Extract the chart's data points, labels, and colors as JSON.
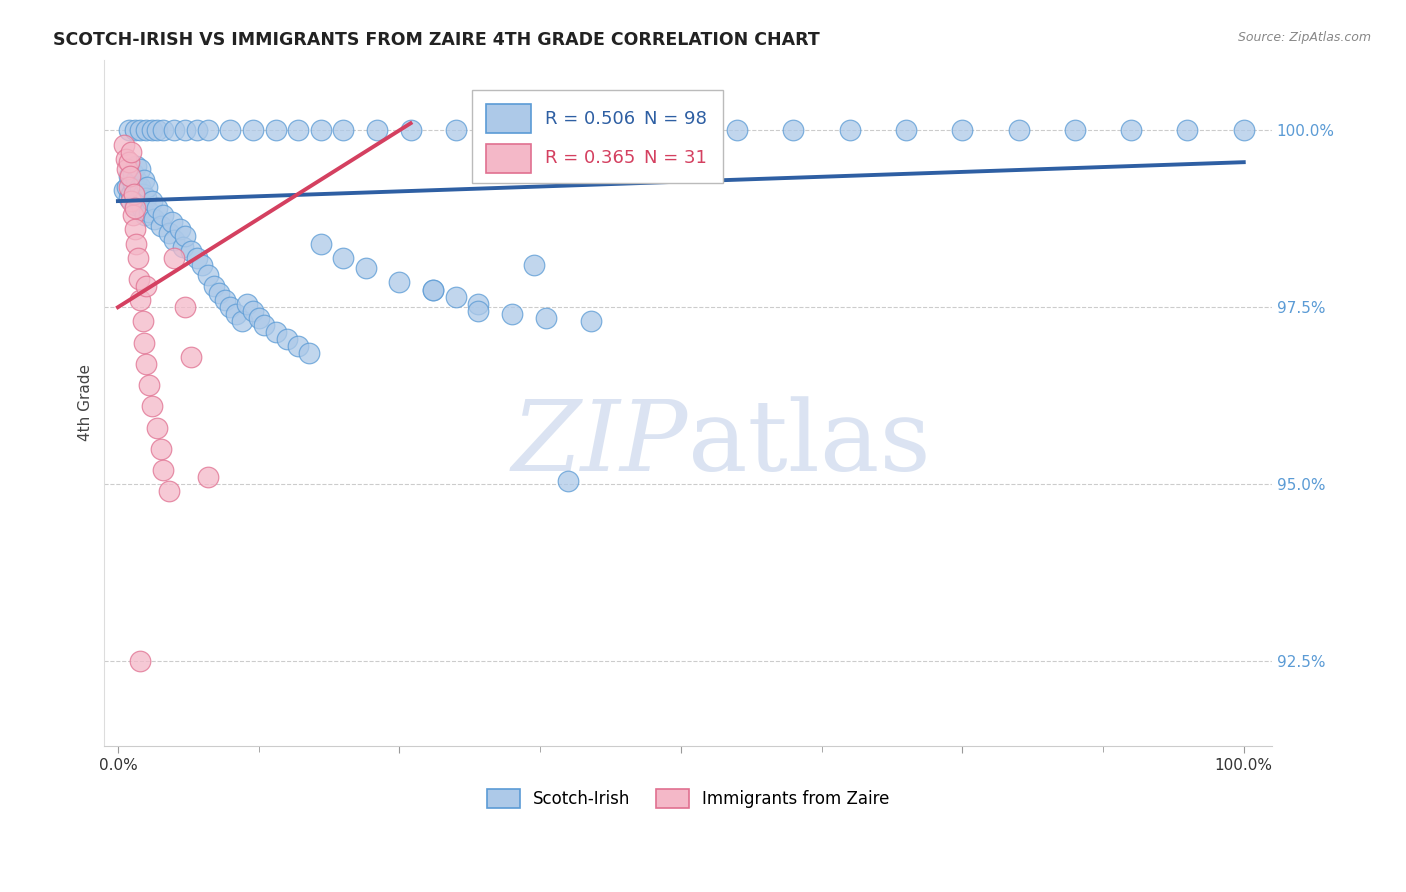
{
  "title": "SCOTCH-IRISH VS IMMIGRANTS FROM ZAIRE 4TH GRADE CORRELATION CHART",
  "source": "Source: ZipAtlas.com",
  "ylabel": "4th Grade",
  "R_blue": 0.506,
  "N_blue": 98,
  "R_pink": 0.365,
  "N_pink": 31,
  "blue_color": "#adc9e8",
  "blue_edge_color": "#5b9bd5",
  "blue_line_color": "#2e5fa3",
  "pink_color": "#f4b8c8",
  "pink_edge_color": "#e07090",
  "pink_line_color": "#d44060",
  "legend_blue_label": "Scotch-Irish",
  "legend_pink_label": "Immigrants from Zaire",
  "ytick_color": "#5b9bd5",
  "xtick_color": "#333333",
  "watermark_color": "#d5dff0",
  "blue_trend": [
    0.0,
    99.0,
    1.0,
    99.55
  ],
  "pink_trend": [
    0.0,
    97.5,
    0.26,
    100.1
  ],
  "blue_x": [
    0.005,
    0.008,
    0.01,
    0.01,
    0.012,
    0.013,
    0.013,
    0.015,
    0.016,
    0.016,
    0.018,
    0.019,
    0.02,
    0.02,
    0.021,
    0.022,
    0.023,
    0.024,
    0.025,
    0.026,
    0.028,
    0.03,
    0.032,
    0.035,
    0.038,
    0.04,
    0.045,
    0.048,
    0.05,
    0.055,
    0.058,
    0.06,
    0.065,
    0.07,
    0.075,
    0.08,
    0.085,
    0.09,
    0.095,
    0.1,
    0.105,
    0.11,
    0.115,
    0.12,
    0.125,
    0.13,
    0.14,
    0.15,
    0.16,
    0.17,
    0.18,
    0.2,
    0.22,
    0.25,
    0.28,
    0.3,
    0.32,
    0.35,
    0.38,
    0.4,
    0.01,
    0.015,
    0.02,
    0.025,
    0.03,
    0.035,
    0.04,
    0.05,
    0.06,
    0.07,
    0.08,
    0.1,
    0.12,
    0.14,
    0.16,
    0.18,
    0.2,
    0.23,
    0.26,
    0.3,
    0.35,
    0.4,
    0.45,
    0.5,
    0.55,
    0.6,
    0.65,
    0.7,
    0.75,
    0.8,
    0.85,
    0.9,
    0.95,
    1.0,
    0.28,
    0.32,
    0.37,
    0.42
  ],
  "blue_y": [
    99.15,
    99.2,
    99.05,
    99.35,
    99.1,
    99.25,
    99.4,
    98.95,
    99.3,
    99.5,
    99.15,
    99.0,
    99.2,
    99.45,
    98.9,
    99.1,
    99.3,
    98.8,
    99.05,
    99.2,
    98.85,
    99.0,
    98.75,
    98.9,
    98.65,
    98.8,
    98.55,
    98.7,
    98.45,
    98.6,
    98.35,
    98.5,
    98.3,
    98.2,
    98.1,
    97.95,
    97.8,
    97.7,
    97.6,
    97.5,
    97.4,
    97.3,
    97.55,
    97.45,
    97.35,
    97.25,
    97.15,
    97.05,
    96.95,
    96.85,
    98.4,
    98.2,
    98.05,
    97.85,
    97.75,
    97.65,
    97.55,
    97.4,
    97.35,
    95.05,
    100.0,
    100.0,
    100.0,
    100.0,
    100.0,
    100.0,
    100.0,
    100.0,
    100.0,
    100.0,
    100.0,
    100.0,
    100.0,
    100.0,
    100.0,
    100.0,
    100.0,
    100.0,
    100.0,
    100.0,
    100.0,
    100.0,
    100.0,
    100.0,
    100.0,
    100.0,
    100.0,
    100.0,
    100.0,
    100.0,
    100.0,
    100.0,
    100.0,
    100.0,
    97.75,
    97.45,
    98.1,
    97.3
  ],
  "pink_x": [
    0.005,
    0.007,
    0.008,
    0.01,
    0.01,
    0.011,
    0.012,
    0.012,
    0.013,
    0.014,
    0.015,
    0.015,
    0.016,
    0.018,
    0.019,
    0.02,
    0.022,
    0.023,
    0.025,
    0.025,
    0.028,
    0.03,
    0.035,
    0.038,
    0.04,
    0.045,
    0.05,
    0.06,
    0.065,
    0.08,
    0.02
  ],
  "pink_y": [
    99.8,
    99.6,
    99.45,
    99.2,
    99.55,
    99.35,
    99.0,
    99.7,
    98.8,
    99.1,
    98.6,
    98.9,
    98.4,
    98.2,
    97.9,
    97.6,
    97.3,
    97.0,
    96.7,
    97.8,
    96.4,
    96.1,
    95.8,
    95.5,
    95.2,
    94.9,
    98.2,
    97.5,
    96.8,
    95.1,
    92.5
  ]
}
